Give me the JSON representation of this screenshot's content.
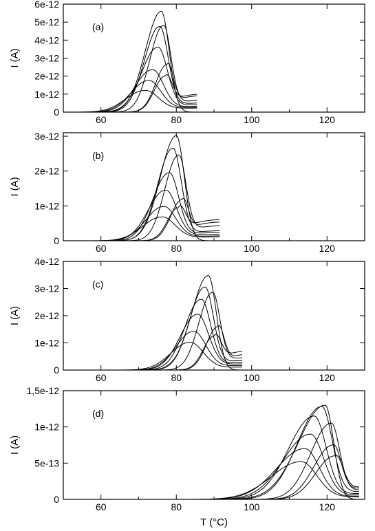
{
  "figure": {
    "xlabel": "T (°C)",
    "ylabel": "I (A)",
    "line_color": "#000000"
  },
  "chart_data": [
    {
      "type": "line",
      "panel_label": "(a)",
      "xlabel": "",
      "ylabel": "I (A)",
      "xlim": [
        50,
        130
      ],
      "ylim": [
        0,
        6e-12
      ],
      "x_ticks": [
        60,
        80,
        100,
        120
      ],
      "x_tick_labels": [
        "60",
        "80",
        "100",
        "120"
      ],
      "y_ticks": [
        0,
        1e-12,
        2e-12,
        3e-12,
        4e-12,
        5e-12,
        6e-12
      ],
      "y_tick_labels": [
        "0",
        "1e-12",
        "2e-12",
        "3e-12",
        "4e-12",
        "5e-12",
        "6e-12"
      ],
      "x_end": 85.5,
      "envelope": {
        "peak_x": 76.0,
        "peak_y": 5.6e-12,
        "left_width": 6.0,
        "right_width": 3.0
      },
      "curves": [
        {
          "peak_x": 71.5,
          "peak_y": 1.2e-12,
          "left_width": 7.0,
          "right_width": 5.0,
          "tail": 2.5e-13
        },
        {
          "peak_x": 72.5,
          "peak_y": 1.75e-12,
          "left_width": 6.5,
          "right_width": 4.6,
          "tail": 3e-13
        },
        {
          "peak_x": 73.5,
          "peak_y": 2.35e-12,
          "left_width": 6.3,
          "right_width": 4.2,
          "tail": 3.5e-13
        },
        {
          "peak_x": 75.0,
          "peak_y": 3.6e-12,
          "left_width": 6.0,
          "right_width": 3.6,
          "tail": 4.5e-13
        },
        {
          "peak_x": 75.5,
          "peak_y": 4.75e-12,
          "left_width": 5.6,
          "right_width": 3.2,
          "tail": 5.5e-13
        },
        {
          "peak_x": 76.5,
          "peak_y": 4.8e-12,
          "left_width": 5.0,
          "right_width": 2.8,
          "tail": 7e-13
        },
        {
          "peak_x": 77.5,
          "peak_y": 2.65e-12,
          "left_width": 4.2,
          "right_width": 2.2,
          "tail": 9.5e-13
        },
        {
          "peak_x": 77.0,
          "peak_y": 2e-12,
          "left_width": 4.0,
          "right_width": 2.4,
          "tail": 1.05e-12
        }
      ]
    },
    {
      "type": "line",
      "panel_label": "(b)",
      "xlabel": "",
      "ylabel": "I (A)",
      "xlim": [
        50,
        130
      ],
      "ylim": [
        0,
        3.1e-12
      ],
      "x_ticks": [
        60,
        80,
        100,
        120
      ],
      "x_tick_labels": [
        "60",
        "80",
        "100",
        "120"
      ],
      "y_ticks": [
        0,
        1e-12,
        2e-12,
        3e-12
      ],
      "y_tick_labels": [
        "0",
        "1e-12",
        "2e-12",
        "3e-12"
      ],
      "x_end": 91.5,
      "envelope": {
        "peak_x": 80.0,
        "peak_y": 3.02e-12,
        "left_width": 6.0,
        "right_width": 3.0
      },
      "curves": [
        {
          "peak_x": 76.0,
          "peak_y": 6.8e-13,
          "left_width": 7.0,
          "right_width": 5.0,
          "tail": 1.2e-13
        },
        {
          "peak_x": 76.5,
          "peak_y": 9.8e-13,
          "left_width": 6.5,
          "right_width": 4.6,
          "tail": 1.5e-13
        },
        {
          "peak_x": 77.0,
          "peak_y": 1.45e-12,
          "left_width": 6.3,
          "right_width": 4.2,
          "tail": 2e-13
        },
        {
          "peak_x": 78.0,
          "peak_y": 1.95e-12,
          "left_width": 6.0,
          "right_width": 3.6,
          "tail": 2.5e-13
        },
        {
          "peak_x": 79.0,
          "peak_y": 2.65e-12,
          "left_width": 5.6,
          "right_width": 3.2,
          "tail": 3e-13
        },
        {
          "peak_x": 80.5,
          "peak_y": 2.45e-12,
          "left_width": 5.0,
          "right_width": 2.8,
          "tail": 4.5e-13
        },
        {
          "peak_x": 81.5,
          "peak_y": 1.18e-12,
          "left_width": 4.2,
          "right_width": 2.2,
          "tail": 5.5e-13
        },
        {
          "peak_x": 80.5,
          "peak_y": 9.5e-13,
          "left_width": 4.0,
          "right_width": 2.4,
          "tail": 6.2e-13
        }
      ]
    },
    {
      "type": "line",
      "panel_label": "(c)",
      "xlabel": "",
      "ylabel": "I (A)",
      "xlim": [
        50,
        130
      ],
      "ylim": [
        0,
        4e-12
      ],
      "x_ticks": [
        60,
        80,
        100,
        120
      ],
      "x_tick_labels": [
        "60",
        "80",
        "100",
        "120"
      ],
      "y_ticks": [
        0,
        1e-12,
        2e-12,
        3e-12,
        4e-12
      ],
      "y_tick_labels": [
        "0",
        "1e-12",
        "2e-12",
        "3e-12",
        "4e-12"
      ],
      "x_end": 97.5,
      "envelope": {
        "peak_x": 88.5,
        "peak_y": 3.48e-12,
        "left_width": 6.2,
        "right_width": 3.0
      },
      "curves": [
        {
          "peak_x": 83.5,
          "peak_y": 1.02e-12,
          "left_width": 7.0,
          "right_width": 5.0,
          "tail": 1.2e-13
        },
        {
          "peak_x": 84.5,
          "peak_y": 1.42e-12,
          "left_width": 6.5,
          "right_width": 4.6,
          "tail": 1.8e-13
        },
        {
          "peak_x": 85.5,
          "peak_y": 2.05e-12,
          "left_width": 6.3,
          "right_width": 4.2,
          "tail": 2.5e-13
        },
        {
          "peak_x": 86.5,
          "peak_y": 2.6e-12,
          "left_width": 6.0,
          "right_width": 3.6,
          "tail": 3e-13
        },
        {
          "peak_x": 87.5,
          "peak_y": 3.05e-12,
          "left_width": 5.6,
          "right_width": 3.2,
          "tail": 3.8e-13
        },
        {
          "peak_x": 89.5,
          "peak_y": 2.85e-12,
          "left_width": 5.0,
          "right_width": 2.8,
          "tail": 5e-13
        },
        {
          "peak_x": 91.0,
          "peak_y": 1.6e-12,
          "left_width": 4.2,
          "right_width": 2.2,
          "tail": 6.2e-13
        },
        {
          "peak_x": 90.0,
          "peak_y": 1.25e-12,
          "left_width": 4.0,
          "right_width": 2.4,
          "tail": 7.5e-13
        }
      ]
    },
    {
      "type": "line",
      "panel_label": "(d)",
      "xlabel": "T (°C)",
      "ylabel": "I (A)",
      "xlim": [
        50,
        130
      ],
      "ylim": [
        0,
        1.5e-12
      ],
      "x_ticks": [
        60,
        80,
        100,
        120
      ],
      "x_tick_labels": [
        "60",
        "80",
        "100",
        "120"
      ],
      "y_ticks": [
        0,
        5e-13,
        1e-12,
        1.5e-12
      ],
      "y_tick_labels": [
        "0",
        "5e-13",
        "1e-12",
        "1,5e-12"
      ],
      "x_end": 128.5,
      "envelope": {
        "peak_x": 119.5,
        "peak_y": 1.3e-12,
        "left_width": 10.0,
        "right_width": 3.2
      },
      "curves": [
        {
          "peak_x": 113.0,
          "peak_y": 5.2e-13,
          "left_width": 11.0,
          "right_width": 6.0,
          "tail": 4e-14
        },
        {
          "peak_x": 114.0,
          "peak_y": 7e-13,
          "left_width": 10.5,
          "right_width": 5.5,
          "tail": 5e-14
        },
        {
          "peak_x": 115.5,
          "peak_y": 9e-13,
          "left_width": 10.0,
          "right_width": 5.0,
          "tail": 7e-14
        },
        {
          "peak_x": 116.5,
          "peak_y": 1.15e-12,
          "left_width": 9.5,
          "right_width": 4.5,
          "tail": 9e-14
        },
        {
          "peak_x": 118.5,
          "peak_y": 1.28e-12,
          "left_width": 9.0,
          "right_width": 4.0,
          "tail": 1.2e-13
        },
        {
          "peak_x": 121.0,
          "peak_y": 1.05e-12,
          "left_width": 7.5,
          "right_width": 3.2,
          "tail": 1.5e-13
        },
        {
          "peak_x": 121.5,
          "peak_y": 7.5e-13,
          "left_width": 7.0,
          "right_width": 3.0,
          "tail": 1.8e-13
        },
        {
          "peak_x": 122.0,
          "peak_y": 6e-13,
          "left_width": 7.0,
          "right_width": 3.0,
          "tail": 2e-13
        }
      ]
    }
  ]
}
